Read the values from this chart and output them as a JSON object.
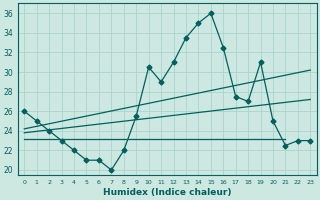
{
  "title": "",
  "xlabel": "Humidex (Indice chaleur)",
  "bg_color": "#cce8e0",
  "line_color": "#006060",
  "grid_color": "#aad4cc",
  "xlim": [
    -0.5,
    23.5
  ],
  "ylim": [
    19.5,
    37.0
  ],
  "yticks": [
    20,
    22,
    24,
    26,
    28,
    30,
    32,
    34,
    36
  ],
  "xticks": [
    0,
    1,
    2,
    3,
    4,
    5,
    6,
    7,
    8,
    9,
    10,
    11,
    12,
    13,
    14,
    15,
    16,
    17,
    18,
    19,
    20,
    21,
    22,
    23
  ],
  "main_line": [
    26,
    25,
    24,
    23,
    22,
    21,
    21,
    20,
    22,
    25.5,
    30.5,
    29,
    31,
    33.5,
    35,
    36,
    32.5,
    27.5,
    27,
    31,
    25,
    22.5,
    23,
    23
  ],
  "trend1_x": [
    0,
    23
  ],
  "trend1_y": [
    24.2,
    30.2
  ],
  "trend2_x": [
    0,
    23
  ],
  "trend2_y": [
    23.8,
    27.2
  ],
  "flat_line_x": [
    0,
    21
  ],
  "flat_line_y": [
    23.2,
    23.2
  ]
}
